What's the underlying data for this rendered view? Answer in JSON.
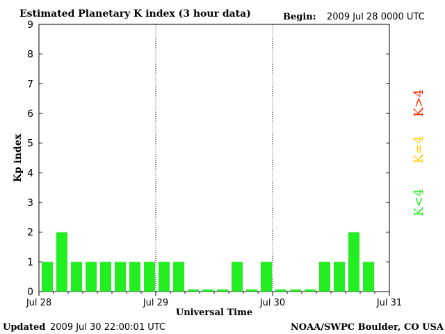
{
  "header": {
    "title": "Estimated Planetary K index (3 hour data)",
    "begin_label": "Begin:",
    "begin_value": "2009 Jul 28 0000 UTC"
  },
  "footer": {
    "updated_label": "Updated",
    "updated_value": "2009 Jul 30 22:00:01 UTC",
    "source": "NOAA/SWPC Boulder, CO USA"
  },
  "legend": {
    "high": {
      "label": "K>4",
      "color": "#ff2a00"
    },
    "equal": {
      "label": "K=4",
      "color": "#ffcc00"
    },
    "low": {
      "label": "K<4",
      "color": "#22ee22"
    }
  },
  "chart_data": {
    "type": "bar",
    "title": "Estimated Planetary K index (3 hour data)",
    "xlabel": "Universal Time",
    "ylabel": "Kp index",
    "ylim": [
      0,
      9
    ],
    "yticks": [
      "0",
      "1",
      "2",
      "3",
      "4",
      "5",
      "6",
      "7",
      "8",
      "9"
    ],
    "xticks": [
      "Jul 28",
      "Jul 29",
      "Jul 30",
      "Jul 31"
    ],
    "grid": false,
    "day_dividers": true,
    "bar_color": "#22ee22",
    "values": [
      1,
      2,
      1,
      1,
      1,
      1,
      1,
      1,
      1,
      1,
      0,
      0,
      0,
      1,
      0,
      1,
      0,
      0,
      0,
      1,
      1,
      2,
      1
    ]
  }
}
